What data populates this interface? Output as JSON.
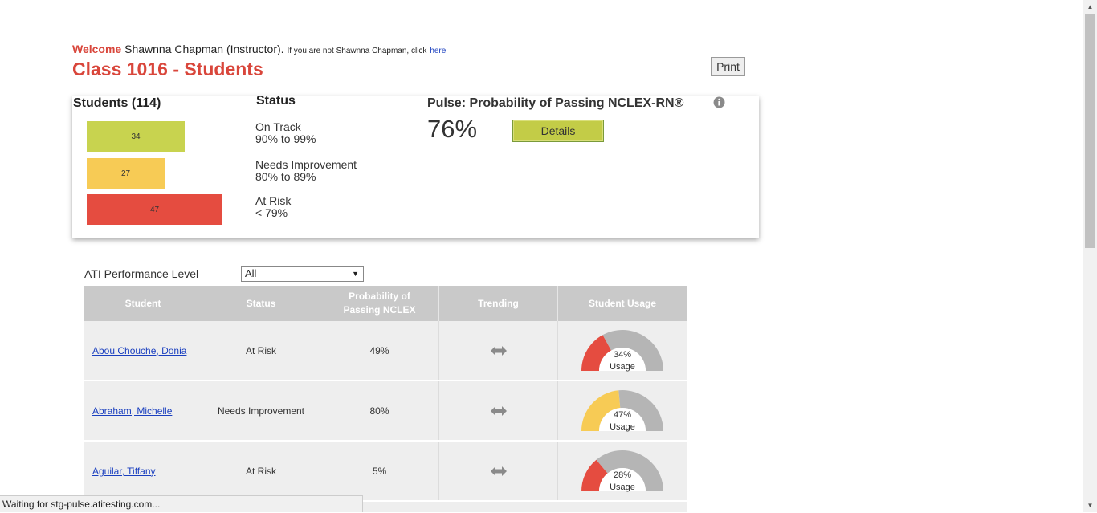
{
  "header": {
    "welcome_word": "Welcome",
    "user_name": "Shawnna Chapman (Instructor).",
    "not_user_text": "If you are not Shawnna Chapman, click",
    "here_link": "here",
    "class_title": "Class 1016 - Students",
    "print_label": "Print"
  },
  "summary": {
    "students_title": "Students (114)",
    "bars": [
      {
        "label": "34",
        "color": "#c8d34f"
      },
      {
        "label": "27",
        "color": "#f7cb55"
      },
      {
        "label": "47",
        "color": "#e54c40"
      }
    ],
    "status_title": "Status",
    "legend": [
      {
        "name": "On Track",
        "range": "90% to 99%"
      },
      {
        "name": "Needs Improvement",
        "range": "80% to 89%"
      },
      {
        "name": "At Risk",
        "range": "< 79%"
      }
    ],
    "pulse_title": "Pulse: Probability of Passing NCLEX-RN®",
    "pulse_value": "76%",
    "details_label": "Details",
    "info_icon": "info-circle-icon"
  },
  "filter": {
    "label": "ATI Performance Level",
    "selected": "All"
  },
  "table": {
    "columns": [
      "Student",
      "Status",
      "Probability of Passing NCLEX",
      "Trending",
      "Student Usage"
    ],
    "rows": [
      {
        "student": "Abou Chouche, Donia",
        "status": "At Risk",
        "probability": "49%",
        "trend_icon": "left-right-arrow-icon",
        "usage": "34%",
        "usage_label": "Usage",
        "usage_fraction": 0.34,
        "usage_color": "#e54c40"
      },
      {
        "student": "Abraham, Michelle",
        "status": "Needs Improvement",
        "probability": "80%",
        "trend_icon": "left-right-arrow-icon",
        "usage": "47%",
        "usage_label": "Usage",
        "usage_fraction": 0.47,
        "usage_color": "#f7cb55"
      },
      {
        "student": "Aguilar, Tiffany",
        "status": "At Risk",
        "probability": "5%",
        "trend_icon": "left-right-arrow-icon",
        "usage": "28%",
        "usage_label": "Usage",
        "usage_fraction": 0.28,
        "usage_color": "#e54c40"
      }
    ]
  },
  "browser": {
    "status_text": "Waiting for stg-pulse.atitesting.com..."
  }
}
